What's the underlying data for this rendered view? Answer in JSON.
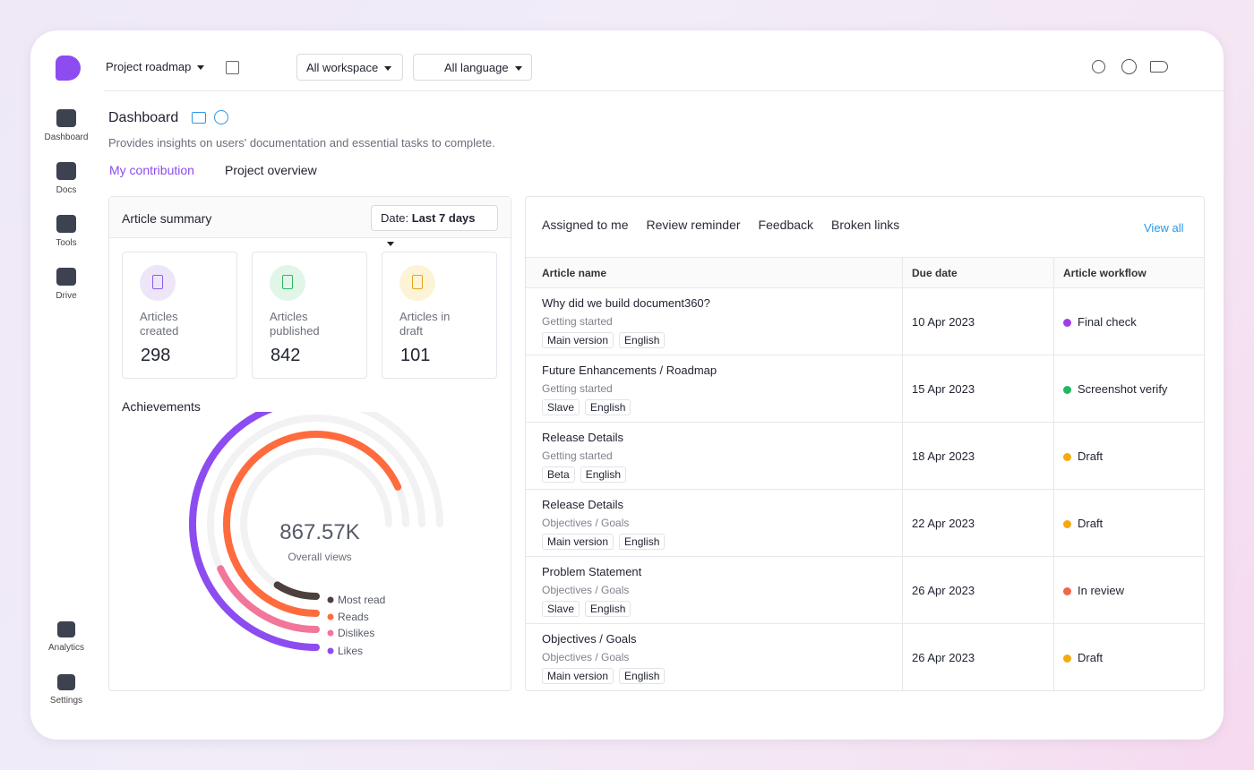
{
  "topbar": {
    "project": "Project roadmap",
    "workspace": "All workspace",
    "language": "All language"
  },
  "sidebar": {
    "items": [
      "Dashboard",
      "Docs",
      "Tools",
      "Drive"
    ],
    "bottom_items": [
      "Analytics",
      "Settings"
    ]
  },
  "header": {
    "title": "Dashboard",
    "description": "Provides insights on users' documentation and essential tasks to complete.",
    "tabs": [
      "My contribution",
      "Project overview"
    ]
  },
  "article_summary": {
    "title": "Article summary",
    "date_label": "Date:",
    "date_value": "Last 7 days",
    "stats": [
      {
        "label": "Articles created",
        "value": "298",
        "color": "#8e5cf0",
        "bg": "#ede6f9"
      },
      {
        "label": "Articles published",
        "value": "842",
        "color": "#2fb463",
        "bg": "#e2f5e9"
      },
      {
        "label": "Articles in draft",
        "value": "101",
        "color": "#e2a916",
        "bg": "#fdf3d7"
      }
    ]
  },
  "achievements": {
    "title": "Achievements",
    "total": "867.57K",
    "total_label": "Overall views",
    "scale": [
      0,
      100
    ],
    "series": [
      {
        "name": "Most read",
        "color": "#4c403d",
        "value": 12
      },
      {
        "name": "Reads",
        "color": "#ff6b3d",
        "value": 91
      },
      {
        "name": "Dislikes",
        "color": "#f2769a",
        "value": 24
      },
      {
        "name": "Likes",
        "color": "#8c4cf0",
        "value": 67
      }
    ]
  },
  "assigned": {
    "tabs": [
      "Assigned to me",
      "Review reminder",
      "Feedback",
      "Broken links"
    ],
    "view_all": "View all",
    "columns": [
      "Article name",
      "Due date",
      "Article workflow"
    ],
    "rows": [
      {
        "title": "Why did we build document360?",
        "category": "Getting started",
        "tags": [
          "Main version",
          "English"
        ],
        "due": "10 Apr 2023",
        "status": "Final check",
        "status_color": "#a23ee8"
      },
      {
        "title": "Future Enhancements / Roadmap",
        "category": "Getting started",
        "tags": [
          "Slave",
          "English"
        ],
        "due": "15 Apr 2023",
        "status": "Screenshot verify",
        "status_color": "#22b860"
      },
      {
        "title": "Release Details",
        "category": "Getting started",
        "tags": [
          "Beta",
          "English"
        ],
        "due": "18 Apr 2023",
        "status": "Draft",
        "status_color": "#f5a90f"
      },
      {
        "title": "Release Details",
        "category": "Objectives / Goals",
        "tags": [
          "Main version",
          "English"
        ],
        "due": "22 Apr 2023",
        "status": "Draft",
        "status_color": "#f5a90f"
      },
      {
        "title": "Problem Statement",
        "category": "Objectives / Goals",
        "tags": [
          "Slave",
          "English"
        ],
        "due": "26 Apr 2023",
        "status": "In review",
        "status_color": "#f0674a"
      },
      {
        "title": "Objectives / Goals",
        "category": "Objectives / Goals",
        "tags": [
          "Main version",
          "English"
        ],
        "due": "26 Apr 2023",
        "status": "Draft",
        "status_color": "#f5a90f"
      }
    ]
  }
}
